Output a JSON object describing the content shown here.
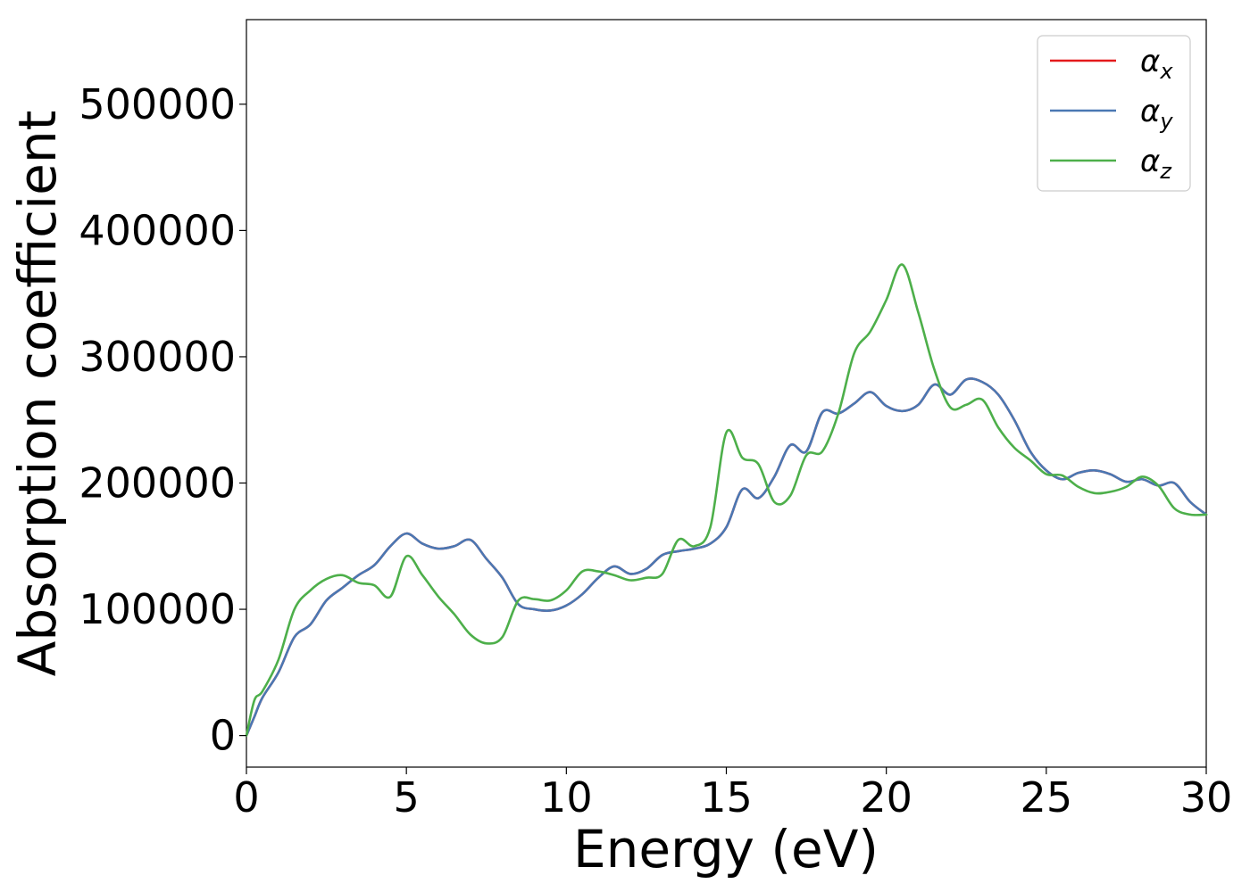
{
  "chart_data": {
    "type": "line",
    "xlabel": "Energy (eV)",
    "ylabel": "Absorption coefficient",
    "xlim": [
      0,
      30
    ],
    "ylim": [
      -25000,
      567000
    ],
    "x_ticks": [
      0,
      5,
      10,
      15,
      20,
      25,
      30
    ],
    "y_ticks": [
      0,
      100000,
      200000,
      300000,
      400000,
      500000
    ],
    "grid": false,
    "legend_position": "top-right",
    "x": [
      0,
      0.25,
      0.5,
      1,
      1.5,
      2,
      2.5,
      3,
      3.5,
      4,
      4.5,
      5,
      5.5,
      6,
      6.5,
      7,
      7.5,
      8,
      8.5,
      9,
      9.5,
      10,
      10.5,
      11,
      11.5,
      12,
      12.5,
      13,
      13.5,
      14,
      14.5,
      15,
      15.5,
      16,
      16.5,
      17,
      17.5,
      18,
      18.5,
      19,
      19.5,
      20,
      20.5,
      21,
      21.5,
      22,
      22.5,
      23,
      23.5,
      24,
      24.5,
      25,
      25.5,
      26,
      26.5,
      27,
      27.5,
      28,
      28.5,
      29,
      29.5,
      30
    ],
    "series": [
      {
        "name": "α",
        "subscript": "x",
        "color": "#e41a1c",
        "values": [
          0,
          15000,
          30000,
          50000,
          78000,
          88000,
          107000,
          117000,
          127000,
          135000,
          150000,
          160000,
          152000,
          148000,
          150000,
          155000,
          140000,
          125000,
          104000,
          100000,
          99000,
          103000,
          112000,
          125000,
          134000,
          128000,
          132000,
          143000,
          146000,
          148000,
          152000,
          165000,
          195000,
          188000,
          205000,
          230000,
          225000,
          256000,
          255000,
          263000,
          272000,
          261000,
          257000,
          262000,
          278000,
          270000,
          282000,
          280000,
          270000,
          250000,
          225000,
          210000,
          203000,
          208000,
          210000,
          207000,
          201000,
          203000,
          198000,
          200000,
          185000,
          175000
        ]
      },
      {
        "name": "α",
        "subscript": "y",
        "color": "#4a78b3",
        "values": [
          0,
          15000,
          30000,
          50000,
          78000,
          88000,
          107000,
          117000,
          127000,
          135000,
          150000,
          160000,
          152000,
          148000,
          150000,
          155000,
          140000,
          125000,
          104000,
          100000,
          99000,
          103000,
          112000,
          125000,
          134000,
          128000,
          132000,
          143000,
          146000,
          148000,
          152000,
          165000,
          195000,
          188000,
          205000,
          230000,
          225000,
          256000,
          255000,
          263000,
          272000,
          261000,
          257000,
          262000,
          278000,
          270000,
          282000,
          280000,
          270000,
          250000,
          225000,
          210000,
          203000,
          208000,
          210000,
          207000,
          201000,
          203000,
          198000,
          200000,
          185000,
          175000
        ]
      },
      {
        "name": "α",
        "subscript": "z",
        "color": "#4daf4a",
        "values": [
          0,
          28000,
          35000,
          60000,
          100000,
          115000,
          124000,
          127000,
          121000,
          119000,
          110000,
          142000,
          127000,
          110000,
          96000,
          80000,
          73000,
          78000,
          107000,
          108000,
          107000,
          115000,
          130000,
          130000,
          127000,
          123000,
          125000,
          128000,
          155000,
          150000,
          165000,
          240000,
          220000,
          215000,
          185000,
          190000,
          222000,
          225000,
          255000,
          303000,
          320000,
          345000,
          373000,
          335000,
          290000,
          260000,
          262000,
          266000,
          244000,
          228000,
          218000,
          207000,
          206000,
          197000,
          192000,
          193000,
          197000,
          205000,
          198000,
          180000,
          175000,
          175000
        ]
      }
    ]
  }
}
